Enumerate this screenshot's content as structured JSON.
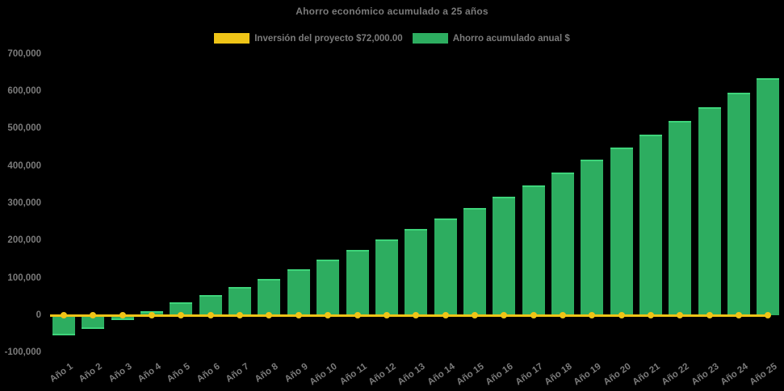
{
  "title": "Ahorro económico acumulado a 25 años",
  "legend": {
    "investment": {
      "label": "Inversión del proyecto $72,000.00",
      "color": "#EFC417"
    },
    "savings": {
      "label": "Ahorro acumulado anual $",
      "color": "#2DAD60"
    }
  },
  "colors": {
    "background": "#000000",
    "bar_fill": "#2DAD60",
    "bar_edge": "#3ED47A",
    "line": "#EFC417",
    "text": "#7B7B7B"
  },
  "chart_data": {
    "type": "bar",
    "title": "Ahorro económico acumulado a 25 años",
    "xlabel": "",
    "ylabel": "",
    "ylim": [
      -100000,
      700000
    ],
    "grid": false,
    "legend_position": "top",
    "categories": [
      "Año 1",
      "Año 2",
      "Año 3",
      "Año 4",
      "Año 5",
      "Año 6",
      "Año 7",
      "Año 8",
      "Año 9",
      "Año 10",
      "Año 11",
      "Año 12",
      "Año 13",
      "Año 14",
      "Año 15",
      "Año 16",
      "Año 17",
      "Año 18",
      "Año 19",
      "Año 20",
      "Año 21",
      "Año 22",
      "Año 23",
      "Año 24",
      "Año 25"
    ],
    "series": [
      {
        "name": "Ahorro acumulado anual $",
        "type": "bar",
        "color": "#2DAD60",
        "values": [
          -54000,
          -36000,
          -13500,
          10000,
          33500,
          54000,
          74500,
          97500,
          124000,
          149500,
          175000,
          202500,
          231000,
          258500,
          286500,
          317000,
          348500,
          381000,
          416000,
          448000,
          482500,
          520000,
          557500,
          596000,
          634500
        ]
      },
      {
        "name": "Inversión del proyecto $72,000.00",
        "type": "line",
        "color": "#EFC417",
        "values": [
          0,
          0,
          0,
          0,
          0,
          0,
          0,
          0,
          0,
          0,
          0,
          0,
          0,
          0,
          0,
          0,
          0,
          0,
          0,
          0,
          0,
          0,
          0,
          0,
          0
        ]
      }
    ],
    "y_ticks": [
      {
        "value": 700000,
        "label": "700,000"
      },
      {
        "value": 600000,
        "label": "600,000"
      },
      {
        "value": 500000,
        "label": "500,000"
      },
      {
        "value": 400000,
        "label": "400,000"
      },
      {
        "value": 300000,
        "label": "300,000"
      },
      {
        "value": 200000,
        "label": "200,000"
      },
      {
        "value": 100000,
        "label": "100,000"
      },
      {
        "value": 0,
        "label": "0"
      },
      {
        "value": -100000,
        "label": "-100,000"
      }
    ]
  }
}
